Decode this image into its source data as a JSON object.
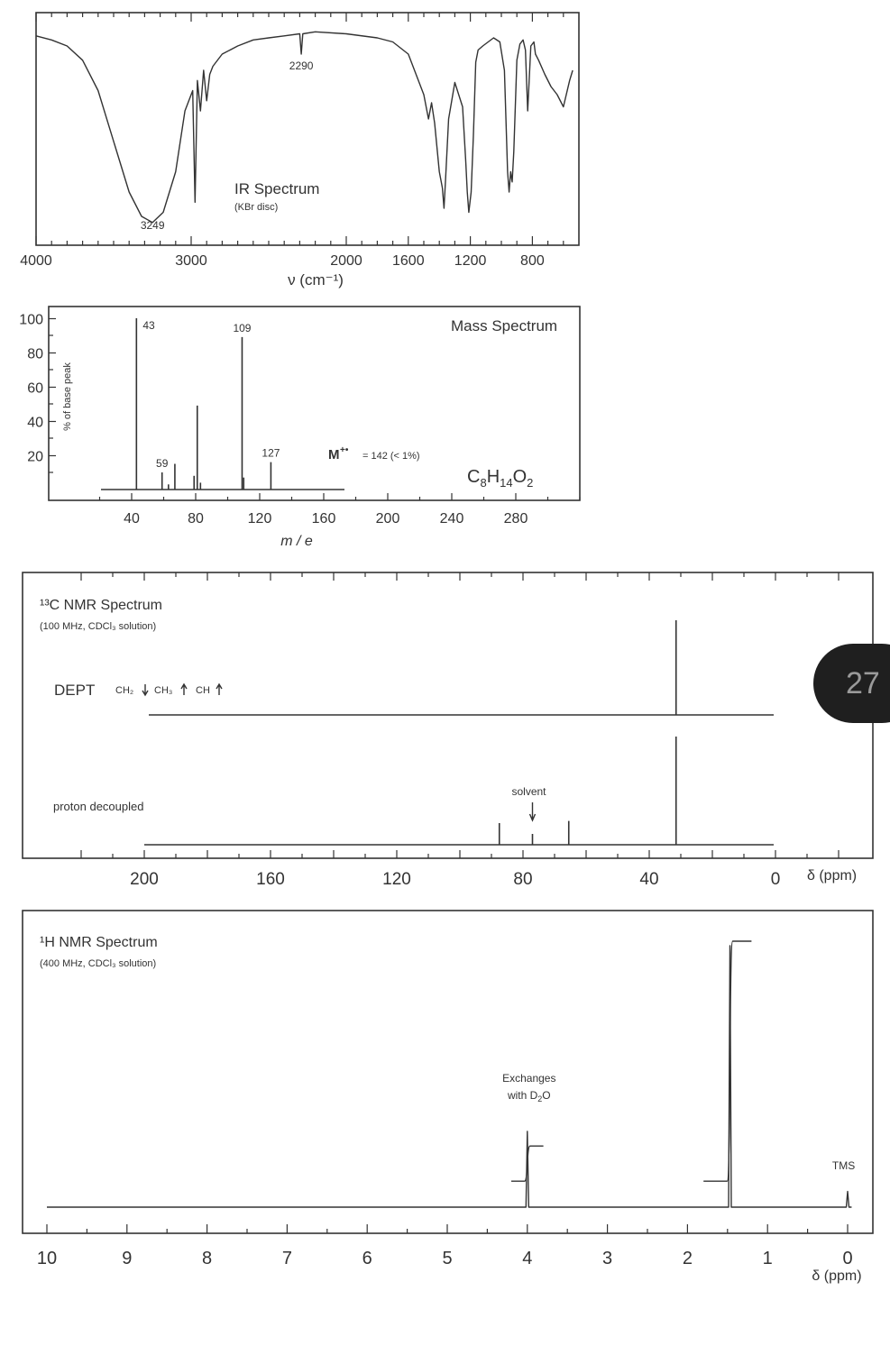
{
  "badge": {
    "text": "27"
  },
  "chart_data": [
    {
      "type": "line",
      "title": "IR Spectrum",
      "subtitle": "(KBr disc)",
      "xlabel": "ν (cm⁻¹)",
      "x_ticks": [
        4000,
        3000,
        2000,
        1600,
        1200,
        800
      ],
      "xlim": [
        4000,
        500
      ],
      "x_reversed": true,
      "grid": false,
      "series": [
        {
          "x": [
            4000,
            3900,
            3800,
            3700,
            3600,
            3500,
            3400,
            3320,
            3249,
            3180,
            3100,
            3040,
            2990,
            2975,
            2960,
            2940,
            2920,
            2900,
            2880,
            2860,
            2800,
            2700,
            2600,
            2500,
            2400,
            2300,
            2290,
            2280,
            2200,
            2000,
            1800,
            1700,
            1600,
            1550,
            1500,
            1470,
            1450,
            1430,
            1400,
            1380,
            1370,
            1360,
            1340,
            1300,
            1250,
            1230,
            1220,
            1210,
            1195,
            1180,
            1165,
            1150,
            1120,
            1050,
            1010,
            980,
            960,
            950,
            940,
            930,
            920,
            900,
            880,
            860,
            845,
            830,
            810,
            790,
            780,
            760,
            720,
            680,
            640,
            600,
            560,
            540
          ],
          "transmittance": [
            97,
            95,
            92,
            85,
            70,
            45,
            20,
            8,
            5,
            10,
            30,
            60,
            70,
            15,
            75,
            60,
            80,
            65,
            78,
            82,
            88,
            92,
            95,
            96,
            97,
            98,
            88,
            98,
            99,
            98,
            96,
            94,
            88,
            78,
            68,
            56,
            64,
            54,
            30,
            22,
            12,
            26,
            56,
            74,
            62,
            36,
            20,
            10,
            20,
            48,
            84,
            90,
            92,
            96,
            94,
            80,
            30,
            20,
            30,
            25,
            40,
            85,
            93,
            95,
            90,
            60,
            92,
            94,
            88,
            85,
            78,
            72,
            68,
            62,
            75,
            80
          ]
        }
      ],
      "annotations": [
        {
          "x": 3249,
          "text": "3249"
        },
        {
          "x": 2290,
          "text": "2290"
        }
      ]
    },
    {
      "type": "bar",
      "title": "Mass Spectrum",
      "xlabel": "m / e",
      "ylabel": "% of base peak",
      "xlim": [
        0,
        320
      ],
      "ylim": [
        0,
        100
      ],
      "x_ticks": [
        40,
        80,
        120,
        160,
        200,
        240,
        280
      ],
      "y_ticks": [
        20,
        40,
        60,
        80,
        100
      ],
      "peaks": [
        {
          "mz": 43,
          "intensity": 100,
          "label": "43"
        },
        {
          "mz": 59,
          "intensity": 10,
          "label": "59"
        },
        {
          "mz": 63,
          "intensity": 3
        },
        {
          "mz": 67,
          "intensity": 15
        },
        {
          "mz": 79,
          "intensity": 8
        },
        {
          "mz": 81,
          "intensity": 49
        },
        {
          "mz": 83,
          "intensity": 4
        },
        {
          "mz": 109,
          "intensity": 89,
          "label": "109"
        },
        {
          "mz": 110,
          "intensity": 7
        },
        {
          "mz": 127,
          "intensity": 16,
          "label": "127"
        }
      ],
      "molecular_ion_symbol": "M",
      "molecular_ion_superscript": "+•",
      "molecular_ion_text": "= 142 (< 1%)",
      "formula_parts": [
        "C",
        "8",
        "H",
        "14",
        "O",
        "2"
      ]
    },
    {
      "type": "line",
      "title": "¹³C NMR Spectrum",
      "subtitle": "(100 MHz, CDCl₃ solution)",
      "xlabel": "δ (ppm)",
      "xlim": [
        220,
        0
      ],
      "x_reversed": true,
      "x_ticks": [
        200,
        160,
        120,
        80,
        40,
        0
      ],
      "dept": {
        "label": "DEPT",
        "legend": [
          {
            "text": "CH₂",
            "direction": "down"
          },
          {
            "text": "CH₃",
            "direction": "up"
          },
          {
            "text": "CH",
            "direction": "up"
          }
        ],
        "peaks": [
          {
            "ppm": 31.5,
            "intensity": 100,
            "direction": "up"
          }
        ]
      },
      "proton_decoupled": {
        "label": "proton decoupled",
        "peaks": [
          {
            "ppm": 87.5,
            "intensity": 20
          },
          {
            "ppm": 77.0,
            "intensity": 10,
            "note": "solvent"
          },
          {
            "ppm": 65.5,
            "intensity": 22
          },
          {
            "ppm": 31.5,
            "intensity": 100
          }
        ],
        "solvent_label": "solvent"
      }
    },
    {
      "type": "line",
      "title": "¹H NMR Spectrum",
      "subtitle": "(400 MHz, CDCl₃ solution)",
      "xlabel": "δ (ppm)",
      "xlim": [
        10,
        0
      ],
      "x_reversed": true,
      "x_ticks": [
        10,
        9,
        8,
        7,
        6,
        5,
        4,
        3,
        2,
        1,
        0
      ],
      "peaks": [
        {
          "ppm": 4.0,
          "intensity": 29,
          "note": "Exchanges with D₂O"
        },
        {
          "ppm": 1.47,
          "intensity": 100
        },
        {
          "ppm": 0.0,
          "intensity": 6,
          "label": "TMS"
        }
      ],
      "integrals": [
        {
          "from_ppm": 4.2,
          "to_ppm": 3.8,
          "start_level": 9,
          "end_level": 23
        },
        {
          "from_ppm": 1.8,
          "to_ppm": 1.2,
          "start_level": 9,
          "end_level": 100
        }
      ],
      "exchange_note_line1": "Exchanges",
      "exchange_note_line2_parts": [
        "with D",
        "2",
        "O"
      ],
      "tms_label": "TMS"
    }
  ]
}
